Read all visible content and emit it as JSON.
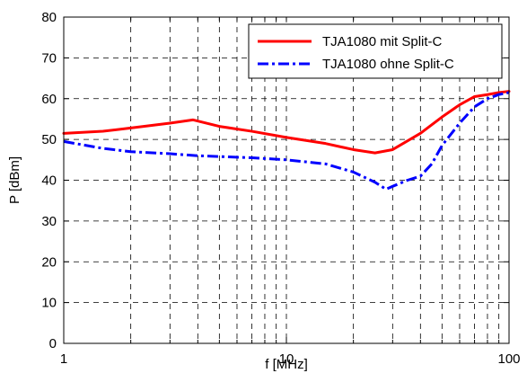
{
  "chart_data": {
    "type": "line",
    "xscale": "log",
    "xlim": [
      1,
      100
    ],
    "ylim": [
      0,
      80
    ],
    "xticks": [
      1,
      10,
      100
    ],
    "yticks": [
      0,
      10,
      20,
      30,
      40,
      50,
      60,
      70,
      80
    ],
    "xlabel": "f [MHz]",
    "ylabel": "P [dBm]",
    "grid": true,
    "grid_style": "dashed",
    "legend_position": "top-right",
    "series": [
      {
        "name": "TJA1080 mit Split-C",
        "color": "#ff0000",
        "style": "solid",
        "x": [
          1,
          1.5,
          2,
          3,
          3.8,
          5,
          7,
          10,
          15,
          20,
          25,
          30,
          40,
          50,
          60,
          70,
          80,
          90,
          100
        ],
        "y": [
          51.5,
          52,
          52.8,
          54,
          54.8,
          53.2,
          52,
          50.5,
          49,
          47.5,
          46.7,
          47.5,
          51.5,
          55.5,
          58.5,
          60.5,
          61,
          61.5,
          61.8
        ]
      },
      {
        "name": "TJA1080 ohne Split-C",
        "color": "#0000ff",
        "style": "dashdot",
        "x": [
          1,
          1.5,
          2,
          3,
          4,
          5,
          7,
          10,
          15,
          20,
          25,
          28,
          30,
          35,
          40,
          45,
          50,
          60,
          70,
          80,
          90,
          100
        ],
        "y": [
          49.5,
          47.8,
          47,
          46.5,
          46,
          45.8,
          45.5,
          45,
          44,
          42,
          39.5,
          37.8,
          38.5,
          40,
          41,
          44,
          48.5,
          54,
          58,
          60,
          61,
          61.5
        ]
      }
    ]
  }
}
